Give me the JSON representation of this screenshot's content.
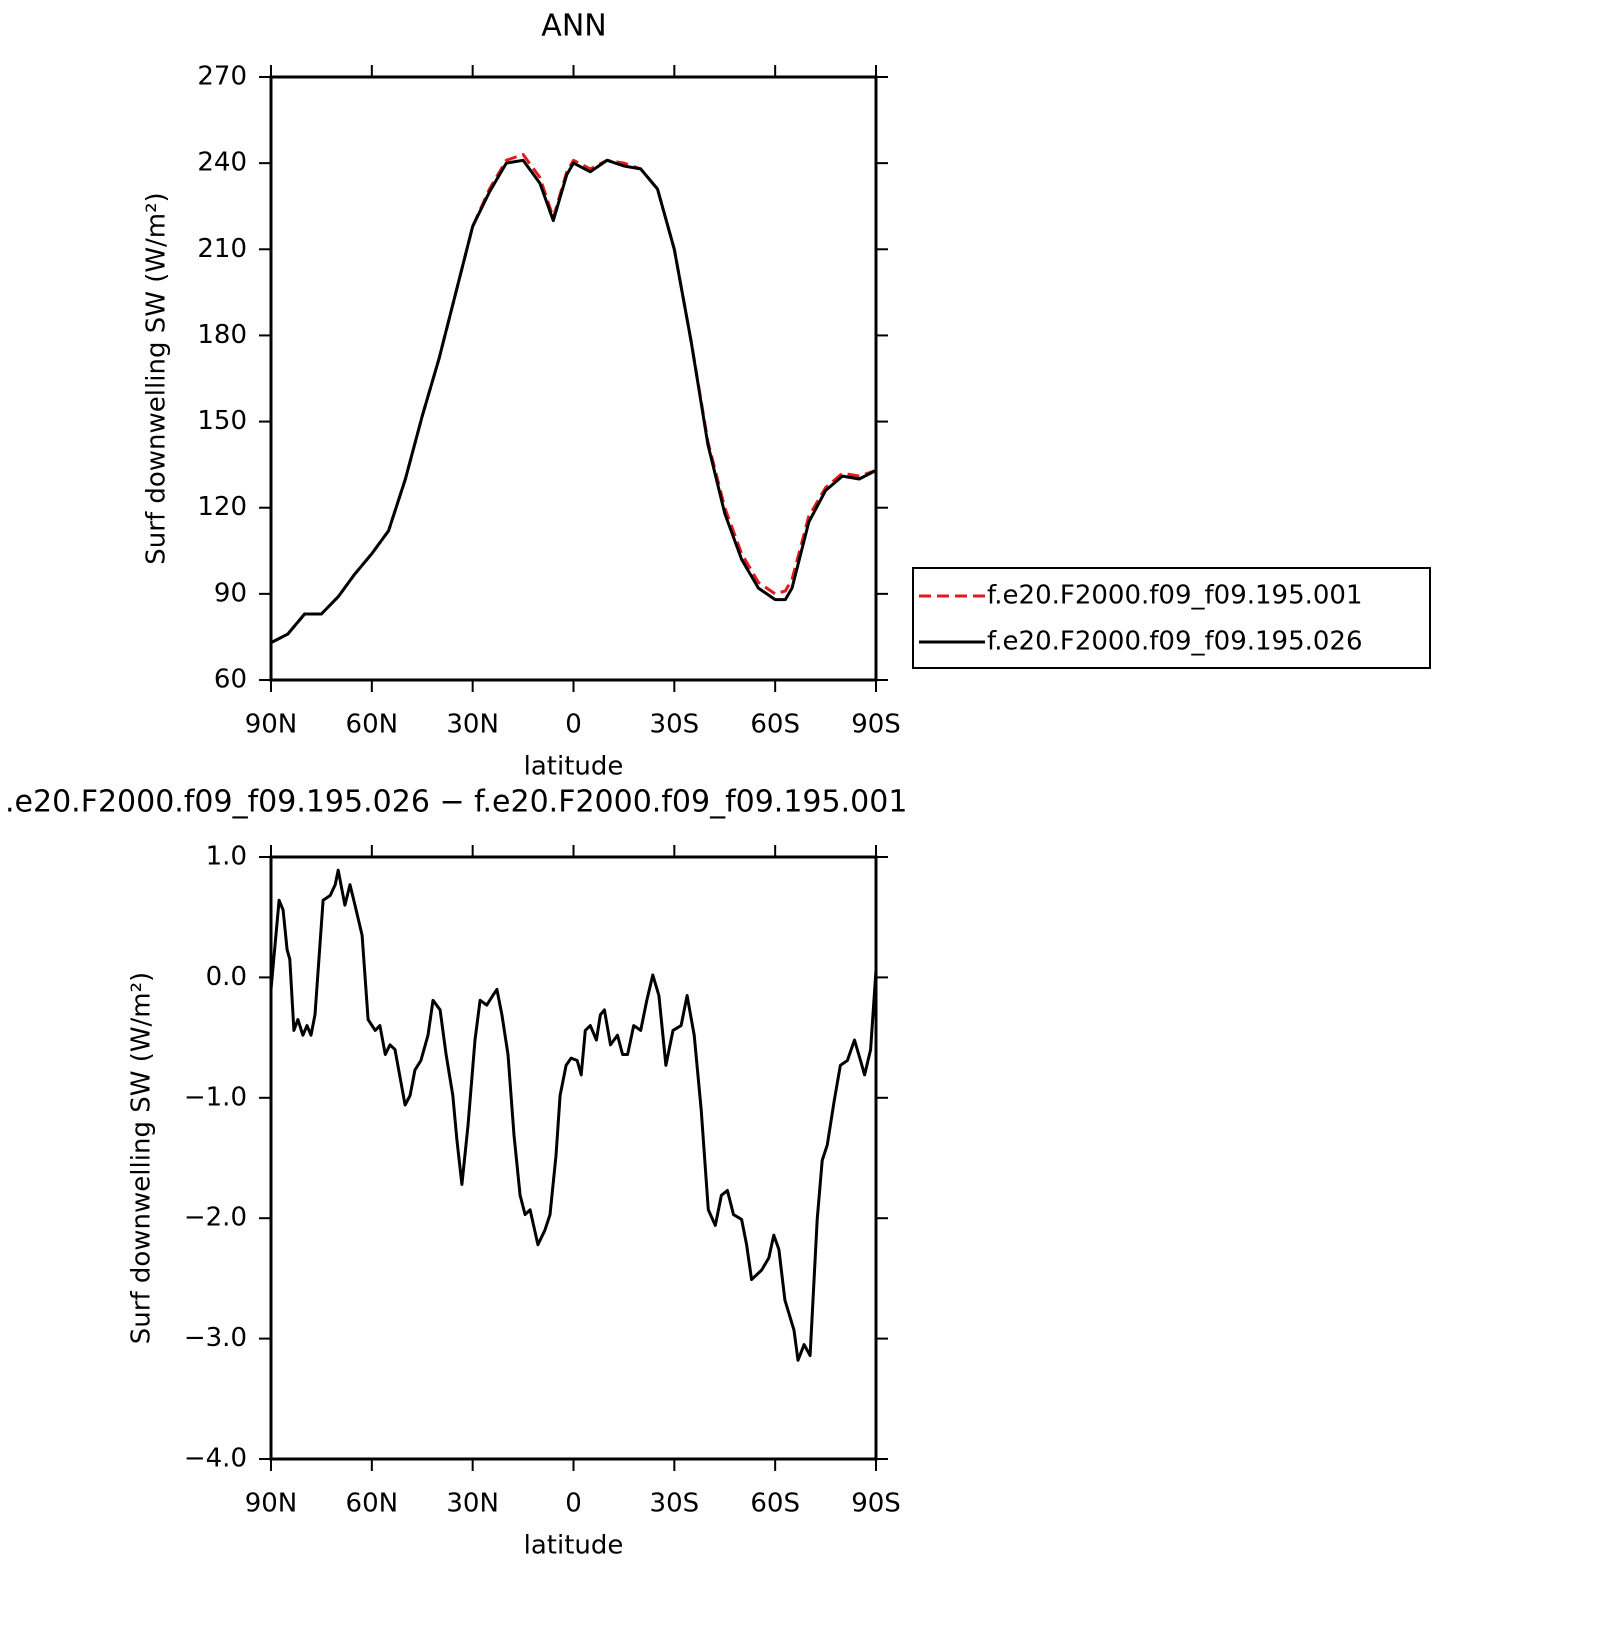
{
  "chart_data": [
    {
      "type": "line",
      "title": "ANN",
      "xlabel": "latitude",
      "ylabel": "Surf downwelling SW (W/m²)",
      "xlim": [
        90,
        -90
      ],
      "xticks": [
        {
          "value": 90,
          "label": "90N"
        },
        {
          "value": 60,
          "label": "60N"
        },
        {
          "value": 30,
          "label": "30N"
        },
        0,
        {
          "value": -30,
          "label": "30S"
        },
        {
          "value": -60,
          "label": "60S"
        },
        {
          "value": -90,
          "label": "90S"
        }
      ],
      "ylim": [
        60,
        270
      ],
      "yticks": [
        60,
        90,
        120,
        150,
        180,
        210,
        240,
        270
      ],
      "legend": "right",
      "x": [
        90,
        85,
        80,
        75,
        70,
        65,
        60,
        55,
        50,
        45,
        40,
        35,
        30,
        25,
        20,
        15,
        10,
        6,
        2,
        0,
        -5,
        -10,
        -15,
        -20,
        -25,
        -30,
        -35,
        -40,
        -45,
        -50,
        -55,
        -60,
        -63,
        -65,
        -70,
        -75,
        -80,
        -85,
        -90
      ],
      "series": [
        {
          "name": "f.e20.F2000.f09_f09.195.001",
          "color": "#e31a1c",
          "dash": true,
          "values": [
            73,
            76,
            83,
            83,
            89,
            97,
            104,
            112,
            130,
            152,
            172,
            195,
            218,
            231,
            241,
            243,
            235,
            221,
            237,
            241,
            238,
            241,
            240,
            238,
            231,
            210,
            178,
            143,
            120,
            104,
            94,
            90,
            91,
            95,
            117,
            127,
            132,
            131,
            133
          ]
        },
        {
          "name": "f.e20.F2000.f09_f09.195.026",
          "color": "#000000",
          "dash": false,
          "values": [
            73,
            76,
            83,
            83,
            89,
            97,
            104,
            112,
            130,
            152,
            172,
            195,
            218,
            230,
            240,
            241,
            233,
            220,
            236,
            240,
            237,
            241,
            239,
            238,
            231,
            210,
            178,
            142,
            118,
            102,
            92,
            88,
            88,
            92,
            115,
            126,
            131,
            130,
            133
          ]
        }
      ]
    },
    {
      "type": "line",
      "title": ".e20.F2000.f09_f09.195.026 − f.e20.F2000.f09_f09.195.001",
      "xlabel": "latitude",
      "ylabel": "Surf downwelling SW (W/m²)",
      "xlim": [
        90,
        -90
      ],
      "xticks": [
        {
          "value": 90,
          "label": "90N"
        },
        {
          "value": 60,
          "label": "60N"
        },
        {
          "value": 30,
          "label": "30N"
        },
        0,
        {
          "value": -30,
          "label": "30S"
        },
        {
          "value": -60,
          "label": "60S"
        },
        {
          "value": -90,
          "label": "90S"
        }
      ],
      "ylim": [
        -4,
        1
      ],
      "yticks": [
        {
          "value": -4,
          "label": "−4.0"
        },
        {
          "value": -3,
          "label": "−3.0"
        },
        {
          "value": -2,
          "label": "−2.0"
        },
        {
          "value": -1,
          "label": "−1.0"
        },
        {
          "value": 0,
          "label": "0.0"
        },
        {
          "value": 1,
          "label": "1.0"
        }
      ],
      "x": [
        90,
        87.6,
        86.4,
        85.2,
        84.4,
        83.2,
        82,
        80.5,
        79.3,
        78.1,
        76.9,
        74.5,
        72.4,
        70.9,
        70,
        68,
        66.5,
        65,
        62.9,
        61.1,
        59,
        57.6,
        56,
        54.6,
        53.1,
        50.1,
        48.6,
        47.2,
        45.4,
        43.3,
        41.8,
        39.7,
        37.9,
        35.9,
        34.7,
        33.2,
        31.4,
        29.3,
        27.8,
        25.8,
        24,
        22.8,
        21.3,
        19.5,
        17.7,
        15.9,
        14.4,
        12.9,
        10.6,
        8.5,
        7,
        5.2,
        4,
        2.2,
        0.7,
        -1.1,
        -2.3,
        -3.5,
        -5,
        -6.8,
        -8,
        -9.2,
        -11,
        -13.1,
        -14.6,
        -16.1,
        -17.9,
        -20,
        -21.8,
        -23.6,
        -25.4,
        -27.5,
        -29.6,
        -32,
        -33.8,
        -35.9,
        -38,
        -40.1,
        -42.2,
        -44,
        -45.8,
        -47.6,
        -50,
        -51.5,
        -53,
        -56,
        -58.1,
        -59.6,
        -61.1,
        -62.9,
        -65.6,
        -66.8,
        -68.6,
        -70.4,
        -72.5,
        -74,
        -75.5,
        -77.6,
        -79.4,
        -81.5,
        -83.6,
        -85.4,
        -86.6,
        -88.4,
        -90
      ],
      "series": [
        {
          "name": null,
          "color": "#000000",
          "dash": false,
          "values": [
            -0.1,
            0.64,
            0.56,
            0.23,
            0.15,
            -0.44,
            -0.35,
            -0.48,
            -0.4,
            -0.48,
            -0.31,
            0.64,
            0.68,
            0.77,
            0.89,
            0.6,
            0.77,
            0.6,
            0.35,
            -0.35,
            -0.44,
            -0.4,
            -0.64,
            -0.56,
            -0.6,
            -1.06,
            -0.98,
            -0.77,
            -0.69,
            -0.48,
            -0.19,
            -0.27,
            -0.64,
            -0.98,
            -1.35,
            -1.72,
            -1.23,
            -0.52,
            -0.19,
            -0.23,
            -0.15,
            -0.1,
            -0.31,
            -0.64,
            -1.31,
            -1.81,
            -1.97,
            -1.93,
            -2.22,
            -2.1,
            -1.97,
            -1.48,
            -0.98,
            -0.73,
            -0.67,
            -0.69,
            -0.81,
            -0.44,
            -0.4,
            -0.52,
            -0.31,
            -0.27,
            -0.56,
            -0.48,
            -0.64,
            -0.64,
            -0.4,
            -0.44,
            -0.19,
            0.02,
            -0.15,
            -0.73,
            -0.44,
            -0.4,
            -0.15,
            -0.48,
            -1.1,
            -1.93,
            -2.06,
            -1.81,
            -1.77,
            -1.97,
            -2.01,
            -2.22,
            -2.51,
            -2.43,
            -2.33,
            -2.14,
            -2.26,
            -2.68,
            -2.93,
            -3.18,
            -3.05,
            -3.14,
            -2.01,
            -1.52,
            -1.39,
            -1.02,
            -0.73,
            -0.69,
            -0.52,
            -0.69,
            -0.81,
            -0.6,
            0.06
          ]
        }
      ]
    }
  ]
}
